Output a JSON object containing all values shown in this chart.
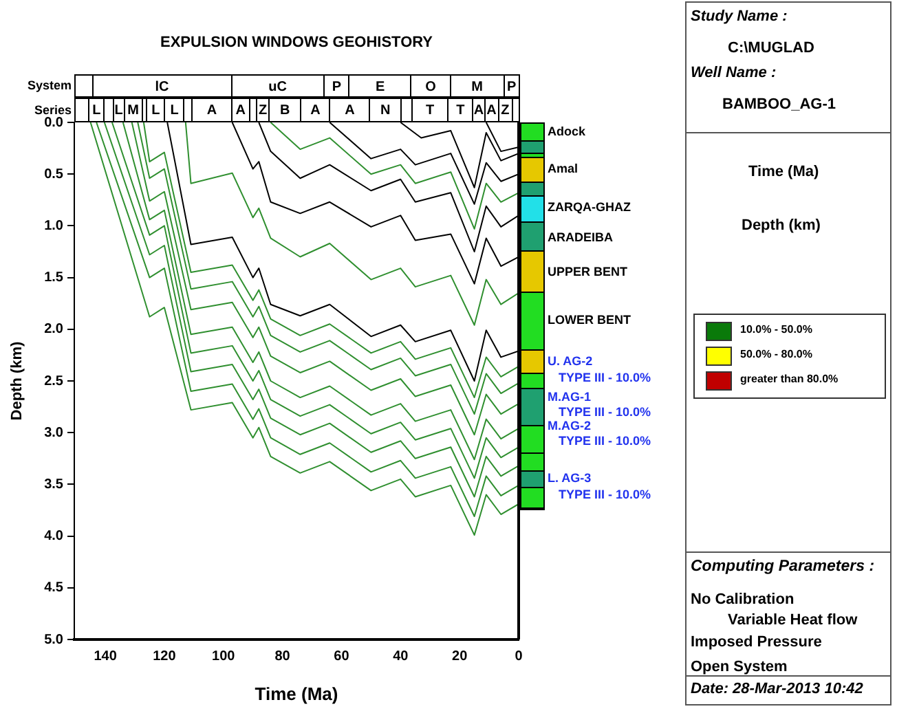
{
  "chart_data": {
    "type": "line",
    "title": "EXPULSION WINDOWS GEOHISTORY",
    "xlabel": "Time (Ma)",
    "ylabel": "Depth (km)",
    "xlim": [
      150.5,
      0
    ],
    "xticks": [
      140,
      120,
      100,
      80,
      60,
      40,
      20,
      0
    ],
    "ylim": [
      5,
      0
    ],
    "yticks": [
      {
        "value": 0,
        "label": "0.0"
      },
      0.5,
      {
        "value": 1,
        "label": "1.0"
      },
      1.5,
      {
        "value": 2,
        "label": "2.0"
      },
      2.5,
      {
        "value": 3,
        "label": "3.0"
      },
      3.5,
      {
        "value": 4,
        "label": "4.0"
      },
      4.5,
      {
        "value": 5,
        "label": "5.0"
      }
    ],
    "legend": false,
    "series": [
      {
        "color": "#2f8f2f",
        "x": [
          145,
          125,
          120,
          111,
          97,
          90,
          88,
          84,
          74,
          64,
          50,
          40,
          35,
          23,
          15,
          11,
          6,
          0
        ],
        "values": [
          0,
          1.88,
          1.79,
          2.78,
          2.71,
          3.05,
          2.95,
          3.23,
          3.39,
          3.28,
          3.56,
          3.45,
          3.62,
          3.51,
          3.99,
          3.6,
          3.79,
          3.69
        ]
      },
      {
        "color": "#2f8f2f",
        "x": [
          143,
          125,
          120,
          111,
          97,
          90,
          88,
          84,
          74,
          64,
          50,
          40,
          35,
          23,
          15,
          11,
          6,
          0
        ],
        "values": [
          0,
          1.5,
          1.41,
          2.6,
          2.53,
          2.87,
          2.77,
          3.05,
          3.21,
          3.1,
          3.38,
          3.27,
          3.44,
          3.33,
          3.81,
          3.42,
          3.61,
          3.51
        ]
      },
      {
        "color": "#2f8f2f",
        "x": [
          140.3,
          125,
          120,
          111,
          97,
          90,
          88,
          84,
          74,
          64,
          50,
          40,
          35,
          23,
          15,
          11,
          6,
          0
        ],
        "values": [
          0,
          1.28,
          1.19,
          2.41,
          2.34,
          2.68,
          2.58,
          2.86,
          3.02,
          2.91,
          3.19,
          3.08,
          3.25,
          3.14,
          3.62,
          3.23,
          3.42,
          3.32
        ]
      },
      {
        "color": "#2f8f2f",
        "x": [
          137.7,
          125,
          120,
          111,
          97,
          90,
          88,
          84,
          74,
          64,
          50,
          40,
          35,
          23,
          15,
          11,
          6,
          0
        ],
        "values": [
          0,
          1.09,
          1,
          2.23,
          2.16,
          2.5,
          2.4,
          2.68,
          2.84,
          2.73,
          3.01,
          2.9,
          3.07,
          2.96,
          3.44,
          3.05,
          3.24,
          3.14
        ]
      },
      {
        "color": "#2f8f2f",
        "x": [
          134,
          125,
          120,
          111,
          97,
          90,
          88,
          84,
          74,
          64,
          50,
          40,
          35,
          23,
          15,
          11,
          6,
          0
        ],
        "values": [
          0,
          0.94,
          0.85,
          2.05,
          1.98,
          2.32,
          2.22,
          2.5,
          2.66,
          2.55,
          2.83,
          2.72,
          2.89,
          2.78,
          3.26,
          2.87,
          3.06,
          2.96
        ]
      },
      {
        "color": "#2f8f2f",
        "x": [
          131,
          125,
          120,
          111,
          97,
          90,
          88,
          84,
          74,
          64,
          50,
          40,
          35,
          23,
          15,
          11,
          6,
          0
        ],
        "values": [
          0,
          0.76,
          0.67,
          1.81,
          1.74,
          2.08,
          1.98,
          2.26,
          2.42,
          2.31,
          2.59,
          2.48,
          2.65,
          2.54,
          3.02,
          2.63,
          2.82,
          2.72
        ]
      },
      {
        "color": "#2f8f2f",
        "x": [
          129,
          125,
          120,
          111,
          97,
          90,
          88,
          84,
          74,
          64,
          50,
          40,
          35,
          23,
          15,
          11,
          6,
          0
        ],
        "values": [
          0,
          0.54,
          0.45,
          1.61,
          1.54,
          1.88,
          1.78,
          2.06,
          2.22,
          2.11,
          2.39,
          2.28,
          2.45,
          2.34,
          2.82,
          2.43,
          2.62,
          2.52
        ]
      },
      {
        "color": "#2f8f2f",
        "x": [
          127,
          125,
          120,
          111,
          97,
          90,
          88,
          84,
          74,
          64,
          50,
          40,
          35,
          23,
          15,
          11,
          6,
          0
        ],
        "values": [
          0,
          0.38,
          0.29,
          1.45,
          1.38,
          1.72,
          1.62,
          1.9,
          2.06,
          1.95,
          2.23,
          2.12,
          2.29,
          2.18,
          2.66,
          2.27,
          2.46,
          2.36
        ]
      },
      {
        "color": "#000000",
        "x": [
          119,
          111,
          97,
          90,
          88,
          84,
          74,
          64,
          50,
          40,
          35,
          23,
          15,
          11,
          6,
          0
        ],
        "values": [
          0,
          1.18,
          1.11,
          1.5,
          1.41,
          1.76,
          1.87,
          1.76,
          2.07,
          1.96,
          2.12,
          2.01,
          2.5,
          2.01,
          2.27,
          2.21
        ]
      },
      {
        "color": "#2f8f2f",
        "x": [
          112.8,
          111,
          97,
          90,
          88,
          84,
          74,
          64,
          50,
          40,
          35,
          23,
          15,
          11,
          6,
          0
        ],
        "values": [
          0,
          0.59,
          0.49,
          0.92,
          0.83,
          1.12,
          1.3,
          1.17,
          1.52,
          1.41,
          1.59,
          1.48,
          1.96,
          1.52,
          1.76,
          1.65
        ]
      },
      {
        "color": "#000000",
        "x": [
          97,
          90,
          88,
          84,
          74,
          64,
          50,
          40,
          35,
          23,
          15,
          11,
          6,
          0
        ],
        "values": [
          0,
          0.45,
          0.38,
          0.77,
          0.88,
          0.77,
          1.01,
          0.9,
          1.14,
          1.08,
          1.56,
          1.12,
          1.39,
          1.3
        ]
      },
      {
        "color": "#000000",
        "x": [
          88,
          84,
          74,
          64,
          50,
          40,
          35,
          23,
          15,
          11,
          6,
          0
        ],
        "values": [
          0,
          0.28,
          0.54,
          0.41,
          0.66,
          0.55,
          0.77,
          0.68,
          1.25,
          0.81,
          1.01,
          0.9
        ]
      },
      {
        "color": "#2f8f2f",
        "x": [
          84,
          74,
          64,
          50,
          40,
          35,
          23,
          15,
          11,
          6,
          0
        ],
        "values": [
          0,
          0.26,
          0.15,
          0.5,
          0.41,
          0.59,
          0.48,
          1.03,
          0.59,
          0.77,
          0.68
        ]
      },
      {
        "color": "#000000",
        "x": [
          64,
          50,
          40,
          35,
          23,
          15,
          11,
          6,
          0
        ],
        "values": [
          0,
          0.35,
          0.26,
          0.41,
          0.3,
          0.79,
          0.39,
          0.57,
          0.5
        ]
      },
      {
        "color": "#000000",
        "x": [
          40,
          33,
          23,
          15,
          11,
          6,
          0
        ],
        "values": [
          0,
          0.15,
          0.08,
          0.63,
          0.1,
          0.37,
          0.3
        ]
      },
      {
        "color": "#000000",
        "x": [
          11,
          6,
          0
        ],
        "values": [
          0,
          0.28,
          0.24
        ]
      }
    ],
    "annotations": [
      "Study Name :",
      "C:\\MUGLAD",
      "Well Name :",
      "BAMBOO_AG-1",
      "Time (Ma)",
      "Depth (km)",
      "10.0% - 50.0%",
      "50.0% - 80.0%",
      "greater than 80.0%",
      "Computing Parameters :",
      "No Calibration",
      "Variable Heat flow",
      "Imposed Pressure",
      "Open System",
      "Date:  28-Mar-2013  10:42",
      "System",
      "Series",
      "lC",
      "uC",
      "P",
      "E",
      "O",
      "M",
      "P",
      "L",
      "L",
      "M",
      "L",
      "L",
      "A",
      "A",
      "Z",
      "B",
      "A",
      "A",
      "N",
      "T",
      "T",
      "A",
      "A",
      "Z",
      "Adock",
      "Amal",
      "ZARQA-GHAZ",
      "ARADEIBA",
      "UPPER BENT",
      "LOWER BENT",
      "U. AG-2",
      "TYPE III - 10.0%",
      "M.AG-1",
      "TYPE III - 10.0%",
      "M.AG-2",
      "TYPE III - 10.0%",
      "L. AG-3",
      "TYPE III - 10.0%"
    ]
  }
}
